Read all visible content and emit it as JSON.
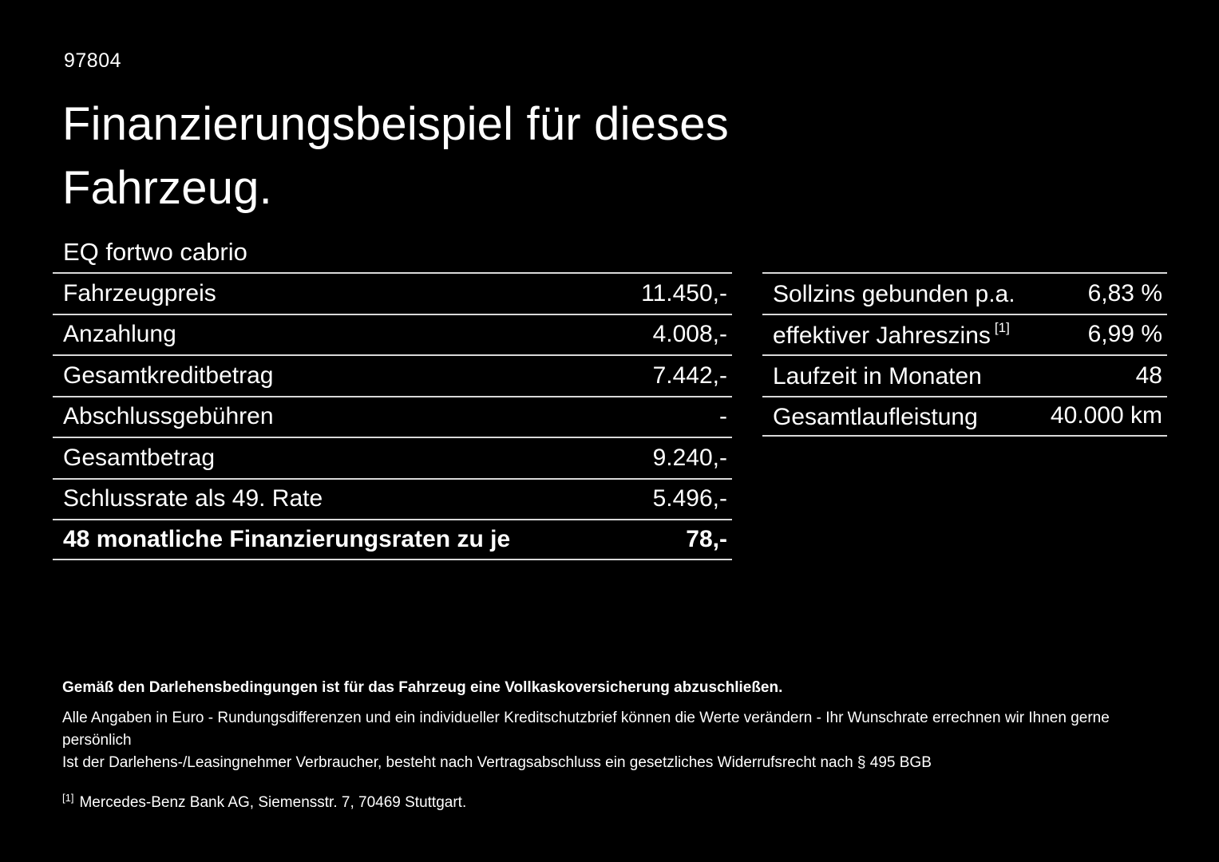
{
  "page": {
    "id_number": "97804",
    "title_line1": "Finanzierungsbeispiel für dieses",
    "title_line2": "Fahrzeug.",
    "model": "EQ fortwo cabrio"
  },
  "left_table": {
    "rows": [
      {
        "label": "Fahrzeugpreis",
        "value": "11.450,-"
      },
      {
        "label": "Anzahlung",
        "value": "4.008,-"
      },
      {
        "label": "Gesamtkreditbetrag",
        "value": "7.442,-"
      },
      {
        "label": "Abschlussgebühren",
        "value": "-"
      },
      {
        "label": "Gesamtbetrag",
        "value": "9.240,-"
      },
      {
        "label": "Schlussrate als 49. Rate",
        "value": "5.496,-"
      },
      {
        "label": "48 monatliche Finanzierungsraten zu je",
        "value": "78,-"
      }
    ]
  },
  "right_table": {
    "rows": [
      {
        "label": "Sollzins gebunden p.a.",
        "sup": "",
        "value": "6,83 %"
      },
      {
        "label": "effektiver Jahreszins",
        "sup": "[1]",
        "value": "6,99 %"
      },
      {
        "label": "Laufzeit in Monaten",
        "sup": "",
        "value": "48"
      },
      {
        "label": "Gesamtlaufleistung",
        "sup": "",
        "value": "40.000 km"
      }
    ]
  },
  "footer": {
    "bold_note": "Gemäß den Darlehensbedingungen ist für das Fahrzeug eine Vollkaskoversicherung abzuschließen.",
    "note1": "Alle Angaben in Euro - Rundungsdifferenzen und ein individueller Kreditschutzbrief können die Werte verändern - Ihr Wunschrate errechnen wir Ihnen gerne persönlich",
    "note2": "Ist der Darlehens-/Leasingnehmer Verbraucher, besteht nach Vertragsabschluss ein gesetzliches Widerrufsrecht nach § 495 BGB",
    "footnote_marker": "[1]",
    "footnote_text": "Mercedes-Benz Bank AG, Siemensstr. 7, 70469 Stuttgart."
  },
  "colors": {
    "background": "#000000",
    "text": "#ffffff",
    "divider": "#d9d9d9"
  }
}
